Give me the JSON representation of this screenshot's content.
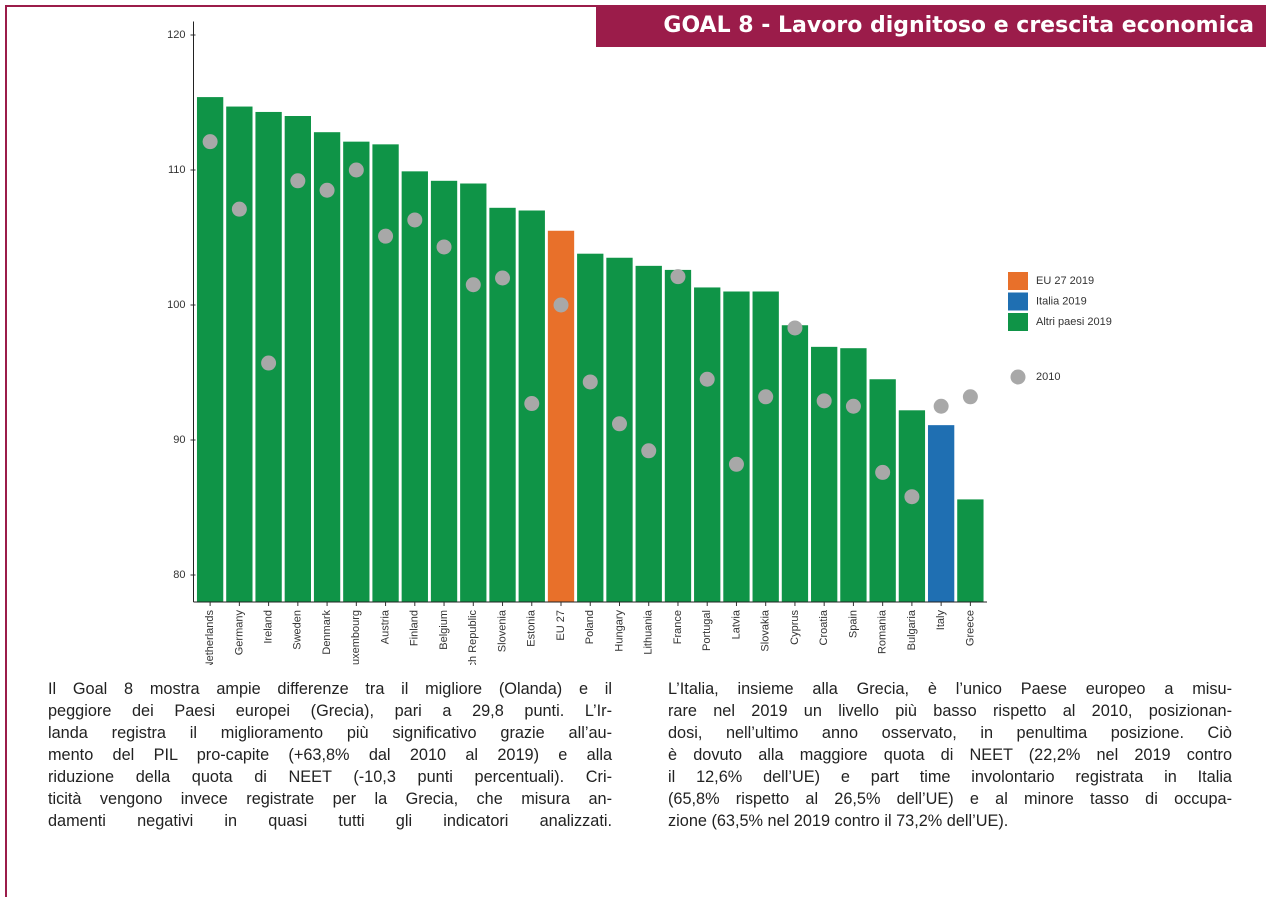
{
  "header": {
    "title": "GOAL 8 - Lavoro dignitoso e crescita economica"
  },
  "chart_data": {
    "type": "bar",
    "categories": [
      "Netherlands",
      "Germany",
      "Ireland",
      "Sweden",
      "Denmark",
      "Luxembourg",
      "Austria",
      "Finland",
      "Belgium",
      "Czech Republic",
      "Slovenia",
      "Estonia",
      "EU 27",
      "Poland",
      "Hungary",
      "Lithuania",
      "France",
      "Portugal",
      "Latvia",
      "Slovakia",
      "Cyprus",
      "Croatia",
      "Spain",
      "Romania",
      "Bulgaria",
      "Italy",
      "Greece"
    ],
    "values": [
      115.4,
      114.7,
      114.3,
      114.0,
      112.8,
      112.1,
      111.9,
      109.9,
      109.2,
      109.0,
      107.2,
      107.0,
      105.5,
      103.8,
      103.5,
      102.9,
      102.6,
      101.3,
      101.0,
      101.0,
      98.5,
      96.9,
      96.8,
      94.5,
      92.2,
      91.1,
      85.6
    ],
    "bar_groups": [
      2,
      2,
      2,
      2,
      2,
      2,
      2,
      2,
      2,
      2,
      2,
      2,
      0,
      2,
      2,
      2,
      2,
      2,
      2,
      2,
      2,
      2,
      2,
      2,
      2,
      1,
      2
    ],
    "legend": [
      {
        "name": "EU 27 2019",
        "color": "#e8702a"
      },
      {
        "name": "Italia 2019",
        "color": "#1f6fb2"
      },
      {
        "name": "Altri paesi 2019",
        "color": "#0f9447"
      }
    ],
    "points": {
      "name": "2010",
      "color": "#a8a8a8",
      "values": [
        112.1,
        107.1,
        95.7,
        109.2,
        108.5,
        110.0,
        105.1,
        106.3,
        104.3,
        101.5,
        102.0,
        92.7,
        100.0,
        94.3,
        91.2,
        89.2,
        102.1,
        94.5,
        88.2,
        93.2,
        98.3,
        92.9,
        92.5,
        87.6,
        85.8,
        92.5,
        93.2
      ]
    },
    "ylim": [
      78,
      121
    ],
    "yticks": [
      80,
      90,
      100,
      110,
      120
    ],
    "grid": false
  },
  "text": {
    "left": [
      "Il Goal 8 mostra ampie differenze tra il migliore (Olanda) e il",
      "peggiore dei Paesi europei (Grecia), pari a 29,8 punti. L’Ir-",
      "landa registra il miglioramento più significativo grazie all’au-",
      "mento del PIL pro-capite (+63,8% dal 2010 al 2019) e alla",
      "riduzione della quota di NEET (-10,3 punti percentuali). Cri-",
      "ticità vengono invece registrate per la Grecia, che misura an-",
      "damenti negativi in quasi tutti gli indicatori analizzati."
    ],
    "right": [
      "L’Italia, insieme alla Grecia, è l’unico Paese europeo a misu-",
      "rare nel 2019 un livello più basso rispetto al 2010, posizionan-",
      "dosi, nell’ultimo anno osservato, in penultima posizione. Ciò",
      "è dovuto alla maggiore quota di NEET (22,2% nel 2019 contro",
      "il 12,6% dell’UE) e part time involontario registrata in Italia",
      "(65,8% rispetto al 26,5% dell’UE) e al minore tasso di occupa-",
      "zione (63,5% nel 2019 contro il 73,2% dell’UE)."
    ]
  }
}
